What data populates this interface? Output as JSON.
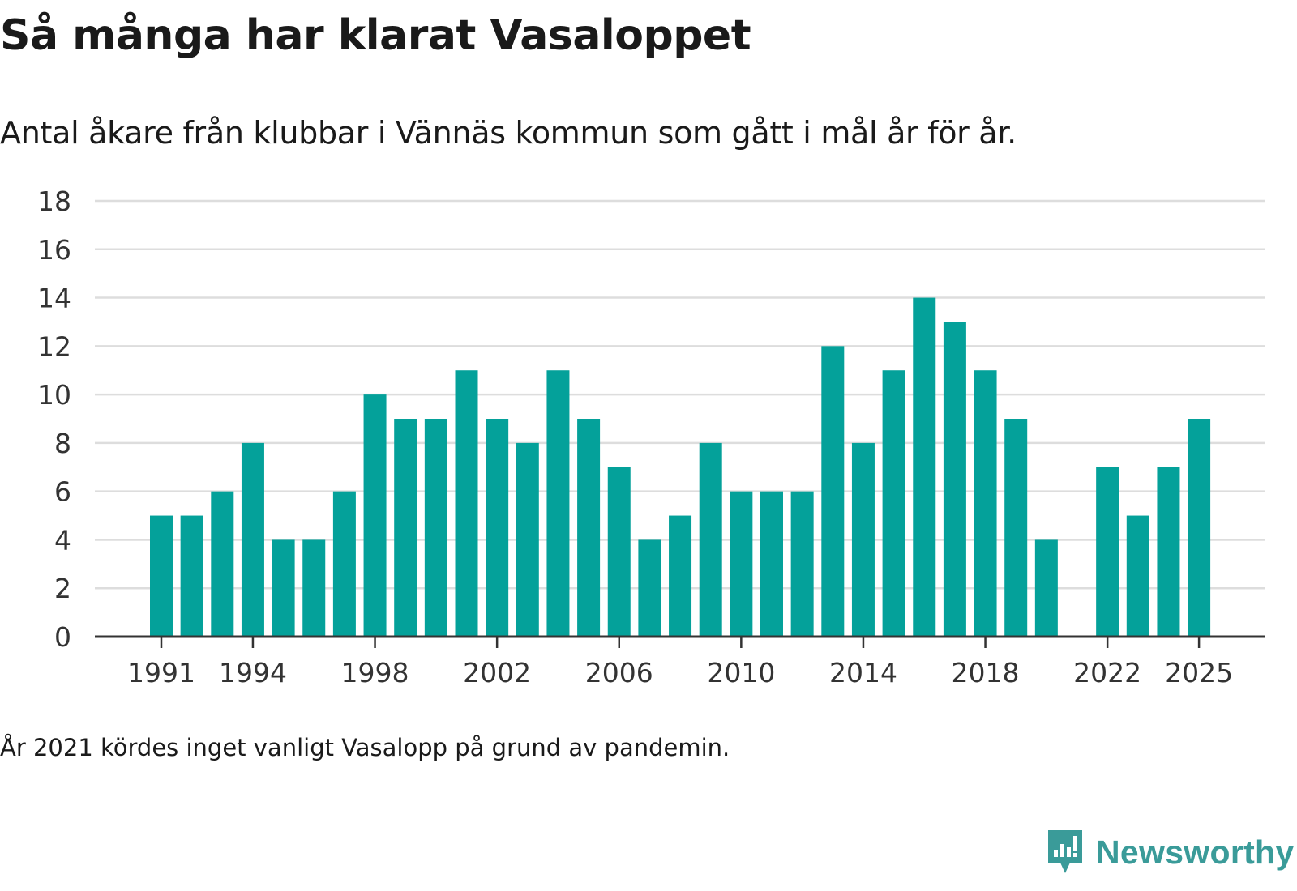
{
  "header": {
    "title": "Så många har klarat Vasaloppet",
    "subtitle": "Antal åkare från klubbar i Vännäs kommun som gått i mål år för år."
  },
  "footer": {
    "note": "År 2021 kördes inget vanligt Vasalopp på grund av pandemin.",
    "brand": "Newsworthy"
  },
  "colors": {
    "bar": "#04a19a",
    "grid": "#dddddd",
    "axis": "#333333",
    "brand": "#3a9b99"
  },
  "chart_data": {
    "type": "bar",
    "title": "Så många har klarat Vasaloppet",
    "subtitle": "Antal åkare från klubbar i Vännäs kommun som gått i mål år för år.",
    "xlabel": "",
    "ylabel": "",
    "ylim": [
      0,
      18
    ],
    "yticks": [
      "0",
      "2",
      "4",
      "6",
      "8",
      "10",
      "12",
      "14",
      "16",
      "18"
    ],
    "xticks": [
      "1991",
      "1994",
      "1998",
      "2002",
      "2006",
      "2010",
      "2014",
      "2018",
      "2022",
      "2025"
    ],
    "grid": true,
    "categories": [
      "1991",
      "1992",
      "1993",
      "1994",
      "1995",
      "1996",
      "1997",
      "1998",
      "1999",
      "2000",
      "2001",
      "2002",
      "2003",
      "2004",
      "2005",
      "2006",
      "2007",
      "2008",
      "2009",
      "2010",
      "2011",
      "2012",
      "2013",
      "2014",
      "2015",
      "2016",
      "2017",
      "2018",
      "2019",
      "2020",
      "2021",
      "2022",
      "2023",
      "2024",
      "2025"
    ],
    "values": [
      5,
      5,
      6,
      8,
      4,
      4,
      6,
      10,
      9,
      9,
      11,
      9,
      8,
      11,
      9,
      7,
      4,
      5,
      8,
      6,
      6,
      6,
      12,
      8,
      11,
      14,
      13,
      11,
      9,
      4,
      null,
      7,
      5,
      7,
      9
    ]
  }
}
